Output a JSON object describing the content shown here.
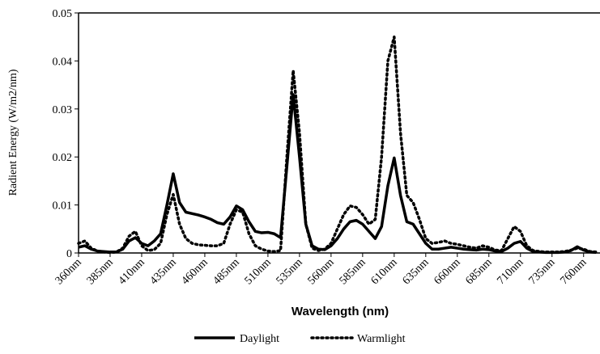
{
  "chart_data": {
    "type": "line",
    "y_label": "Radient Energy (W/m2/nm)",
    "x_label": "Wavelength (nm)",
    "x": [
      360,
      365,
      370,
      375,
      380,
      385,
      390,
      395,
      400,
      405,
      410,
      415,
      420,
      425,
      430,
      435,
      440,
      445,
      450,
      455,
      460,
      465,
      470,
      475,
      480,
      485,
      490,
      495,
      500,
      505,
      510,
      515,
      520,
      525,
      530,
      535,
      540,
      545,
      550,
      555,
      560,
      565,
      570,
      575,
      580,
      585,
      590,
      595,
      600,
      605,
      610,
      615,
      620,
      625,
      630,
      635,
      640,
      645,
      650,
      655,
      660,
      665,
      670,
      675,
      680,
      685,
      690,
      695,
      700,
      705,
      710,
      715,
      720,
      725,
      730,
      735,
      740,
      745,
      750,
      755,
      760,
      765,
      770
    ],
    "series": [
      {
        "name": "Daylight",
        "color": "#000000",
        "dash": "solid",
        "values": [
          0.0012,
          0.0015,
          0.0008,
          0.0004,
          0.0003,
          0.0002,
          0.0002,
          0.0008,
          0.0025,
          0.0032,
          0.002,
          0.0015,
          0.0025,
          0.004,
          0.01,
          0.0165,
          0.0105,
          0.0085,
          0.0082,
          0.0079,
          0.0075,
          0.007,
          0.0063,
          0.006,
          0.0075,
          0.0098,
          0.009,
          0.0065,
          0.0045,
          0.0042,
          0.0043,
          0.004,
          0.0032,
          0.018,
          0.033,
          0.02,
          0.006,
          0.0015,
          0.0008,
          0.0007,
          0.0015,
          0.003,
          0.005,
          0.0065,
          0.0068,
          0.006,
          0.0045,
          0.003,
          0.0055,
          0.014,
          0.0198,
          0.012,
          0.0065,
          0.006,
          0.004,
          0.002,
          0.0008,
          0.0008,
          0.001,
          0.0012,
          0.001,
          0.0008,
          0.0007,
          0.0006,
          0.0008,
          0.0007,
          0.0004,
          0.0003,
          0.001,
          0.002,
          0.0024,
          0.001,
          0.0003,
          0.0002,
          0.0001,
          0.0001,
          0.0001,
          0.0002,
          0.0005,
          0.0013,
          0.0006,
          0.0002,
          0.0001
        ]
      },
      {
        "name": "Warmlight",
        "color": "#000000",
        "dash": "dotted",
        "values": [
          0.002,
          0.0025,
          0.001,
          0.0004,
          0.0002,
          0.0001,
          0.0002,
          0.001,
          0.0035,
          0.0045,
          0.0015,
          0.0005,
          0.0007,
          0.002,
          0.008,
          0.0122,
          0.006,
          0.003,
          0.002,
          0.0017,
          0.0016,
          0.0015,
          0.0015,
          0.002,
          0.006,
          0.009,
          0.0085,
          0.004,
          0.0015,
          0.0008,
          0.0004,
          0.0003,
          0.0005,
          0.02,
          0.038,
          0.025,
          0.006,
          0.001,
          0.0005,
          0.0008,
          0.002,
          0.005,
          0.008,
          0.0098,
          0.0095,
          0.008,
          0.006,
          0.007,
          0.02,
          0.04,
          0.045,
          0.025,
          0.012,
          0.0105,
          0.007,
          0.003,
          0.002,
          0.0022,
          0.0025,
          0.002,
          0.0018,
          0.0015,
          0.0012,
          0.001,
          0.0015,
          0.0012,
          0.0006,
          0.0005,
          0.003,
          0.0055,
          0.0045,
          0.0015,
          0.0005,
          0.0003,
          0.0002,
          0.0002,
          0.0002,
          0.0003,
          0.0006,
          0.001,
          0.0008,
          0.0003,
          0.0002
        ]
      }
    ],
    "xlim": [
      360,
      773
    ],
    "xticks": [
      {
        "value": 360,
        "label": "360nm"
      },
      {
        "value": 385,
        "label": "385nm"
      },
      {
        "value": 410,
        "label": "410nm"
      },
      {
        "value": 435,
        "label": "435nm"
      },
      {
        "value": 460,
        "label": "460nm"
      },
      {
        "value": 485,
        "label": "485nm"
      },
      {
        "value": 510,
        "label": "510nm"
      },
      {
        "value": 535,
        "label": "535nm"
      },
      {
        "value": 560,
        "label": "560nm"
      },
      {
        "value": 585,
        "label": "585nm"
      },
      {
        "value": 610,
        "label": "610nm"
      },
      {
        "value": 635,
        "label": "635nm"
      },
      {
        "value": 660,
        "label": "660nm"
      },
      {
        "value": 685,
        "label": "685nm"
      },
      {
        "value": 710,
        "label": "710nm"
      },
      {
        "value": 735,
        "label": "735nm"
      },
      {
        "value": 760,
        "label": "760nm"
      }
    ],
    "ylim": [
      0,
      0.05
    ],
    "yticks": [
      0,
      0.01,
      0.02,
      0.03,
      0.04,
      0.05
    ],
    "grid": false,
    "legend": "bottom"
  }
}
